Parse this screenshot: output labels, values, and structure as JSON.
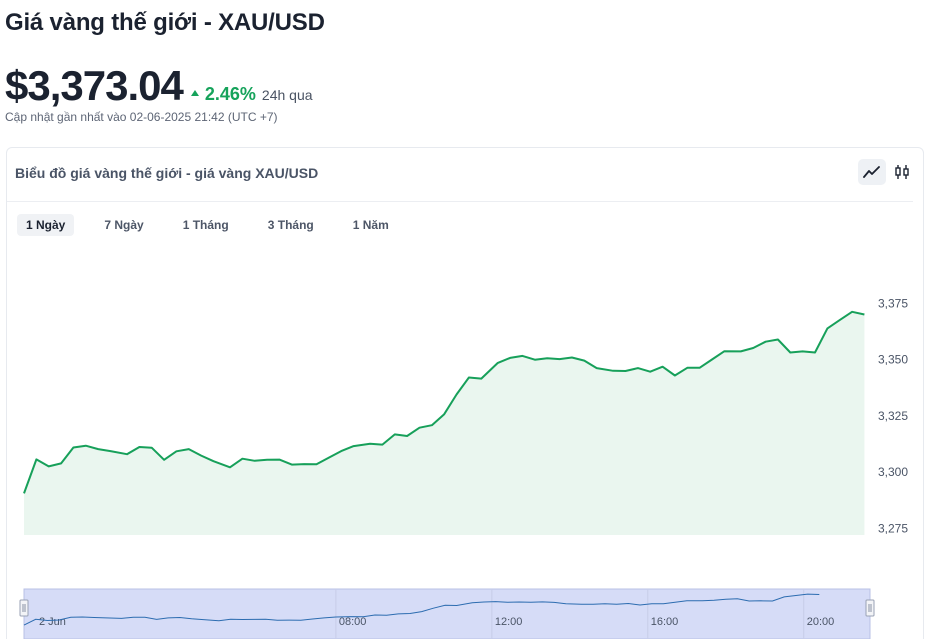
{
  "title": "Giá vàng thế giới - XAU/USD",
  "price": "$3,373.04",
  "change": {
    "percent": "2.46%",
    "period": "24h qua",
    "direction": "up",
    "color": "#16a35b"
  },
  "updated": "Cập nhật gần nhất vào 02-06-2025 21:42 (UTC +7)",
  "chart_card": {
    "title": "Biểu đồ giá vàng thế giới - giá vàng XAU/USD",
    "view_toggles": [
      "line-chart-icon",
      "candlestick-icon"
    ],
    "active_view": "line-chart-icon"
  },
  "ranges": [
    "1 Ngày",
    "7 Ngày",
    "1 Tháng",
    "3 Tháng",
    "1 Năm"
  ],
  "active_range": "1 Ngày",
  "chart_data": {
    "type": "area",
    "title": "",
    "xlabel": "",
    "ylabel": "",
    "ylim": [
      3272,
      3380
    ],
    "y_ticks": [
      "3,375",
      "3,350",
      "3,325",
      "3,300",
      "3,275"
    ],
    "y_tick_values": [
      3375,
      3350,
      3325,
      3300,
      3275
    ],
    "x_range_hours": [
      0,
      21.7
    ],
    "series": [
      {
        "color": "#17a05a",
        "fill": "#eaf6ef",
        "points": [
          [
            0.0,
            3290.5
          ],
          [
            0.3,
            3305.6
          ],
          [
            0.6,
            3302.5
          ],
          [
            0.9,
            3303.8
          ],
          [
            1.2,
            3310.9
          ],
          [
            1.5,
            3311.7
          ],
          [
            1.8,
            3310.2
          ],
          [
            2.1,
            3309.3
          ],
          [
            2.5,
            3307.9
          ],
          [
            2.8,
            3311.1
          ],
          [
            3.1,
            3310.8
          ],
          [
            3.4,
            3305.4
          ],
          [
            3.7,
            3309.2
          ],
          [
            4.0,
            3310.2
          ],
          [
            4.3,
            3307.3
          ],
          [
            4.6,
            3304.8
          ],
          [
            5.0,
            3302.1
          ],
          [
            5.3,
            3305.9
          ],
          [
            5.6,
            3305.0
          ],
          [
            5.9,
            3305.4
          ],
          [
            6.2,
            3305.5
          ],
          [
            6.5,
            3303.3
          ],
          [
            6.8,
            3303.5
          ],
          [
            7.1,
            3303.4
          ],
          [
            7.4,
            3306.4
          ],
          [
            7.7,
            3309.3
          ],
          [
            8.0,
            3311.5
          ],
          [
            8.4,
            3312.6
          ],
          [
            8.7,
            3312.2
          ],
          [
            9.0,
            3316.7
          ],
          [
            9.3,
            3316.0
          ],
          [
            9.6,
            3319.7
          ],
          [
            9.9,
            3320.8
          ],
          [
            10.2,
            3325.7
          ],
          [
            10.5,
            3334.5
          ],
          [
            10.8,
            3342.0
          ],
          [
            11.1,
            3341.5
          ],
          [
            11.5,
            3348.5
          ],
          [
            11.8,
            3350.7
          ],
          [
            12.1,
            3351.6
          ],
          [
            12.4,
            3349.9
          ],
          [
            12.7,
            3350.6
          ],
          [
            13.0,
            3350.2
          ],
          [
            13.3,
            3350.9
          ],
          [
            13.6,
            3349.5
          ],
          [
            13.9,
            3346.2
          ],
          [
            14.3,
            3345.0
          ],
          [
            14.6,
            3344.9
          ],
          [
            14.9,
            3346.2
          ],
          [
            15.2,
            3344.6
          ],
          [
            15.5,
            3346.8
          ],
          [
            15.8,
            3342.9
          ],
          [
            16.1,
            3346.3
          ],
          [
            16.4,
            3346.3
          ],
          [
            16.7,
            3350.0
          ],
          [
            17.0,
            3353.7
          ],
          [
            17.4,
            3353.6
          ],
          [
            17.7,
            3355.1
          ],
          [
            18.0,
            3357.9
          ],
          [
            18.3,
            3358.9
          ],
          [
            18.6,
            3353.1
          ],
          [
            18.9,
            3353.6
          ],
          [
            19.2,
            3353.1
          ],
          [
            19.5,
            3363.8
          ],
          [
            19.8,
            3367.5
          ],
          [
            20.1,
            3371.2
          ],
          [
            20.4,
            3370.0
          ]
        ]
      }
    ],
    "navigator": {
      "x_labels": [
        "2 Jun",
        "08:00",
        "12:00",
        "16:00",
        "20:00"
      ],
      "x_label_hours": [
        0,
        8,
        12,
        16,
        20
      ],
      "fill": "#d6dcf7",
      "line_color": "#2c6cb0"
    }
  }
}
